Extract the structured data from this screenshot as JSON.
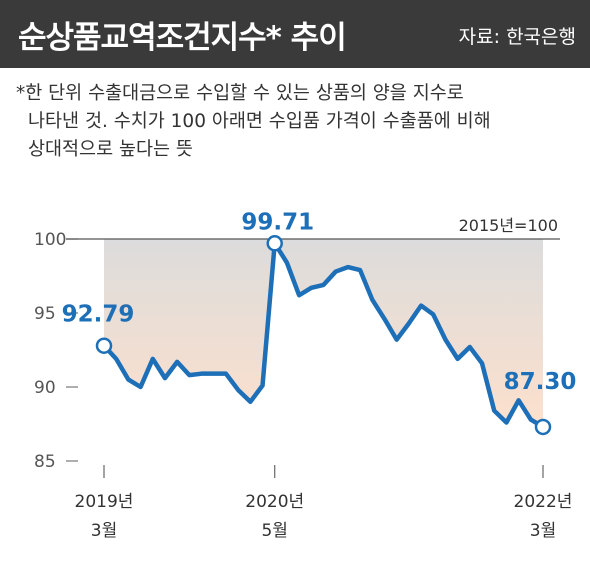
{
  "header": {
    "title": "순상품교역조건지수* 추이",
    "source": "자료: 한국은행"
  },
  "note": {
    "line1": "*한 단위 수출대금으로 수입할 수 있는 상품의 양을 지수로",
    "line2": "나타낸 것. 수치가 100 아래면 수입품 가격이 수출품에 비해",
    "line3": "상대적으로 높다는 뜻"
  },
  "colors": {
    "line": "#1d6fb8",
    "header_bg": "#3a3a3a",
    "area_top": "#dcdcdc",
    "area_bottom": "#fde0cc"
  },
  "chart_data": {
    "type": "area",
    "title": "순상품교역조건지수* 추이",
    "ylim": [
      85,
      100
    ],
    "yticks": [
      85,
      90,
      95,
      100
    ],
    "base_label": "2015년=100",
    "x_labels": [
      {
        "index": 0,
        "year": "2019년",
        "month": "3월"
      },
      {
        "index": 14,
        "year": "2020년",
        "month": "5월"
      },
      {
        "index": 36,
        "year": "2022년",
        "month": "3월"
      }
    ],
    "series": [
      {
        "values": [
          92.79,
          91.9,
          90.5,
          90.0,
          91.9,
          90.6,
          91.7,
          90.8,
          90.9,
          90.9,
          90.9,
          89.8,
          89.0,
          90.1,
          99.71,
          98.4,
          96.2,
          96.7,
          96.9,
          97.8,
          98.1,
          97.9,
          95.9,
          94.6,
          93.2,
          94.3,
          95.5,
          94.9,
          93.2,
          91.9,
          92.7,
          91.6,
          88.4,
          87.6,
          89.1,
          87.8,
          87.3
        ],
        "labels": [
          {
            "index": 0,
            "text": "92.79"
          },
          {
            "index": 14,
            "text": "99.71"
          },
          {
            "index": 36,
            "text": "87.30"
          }
        ]
      }
    ]
  }
}
